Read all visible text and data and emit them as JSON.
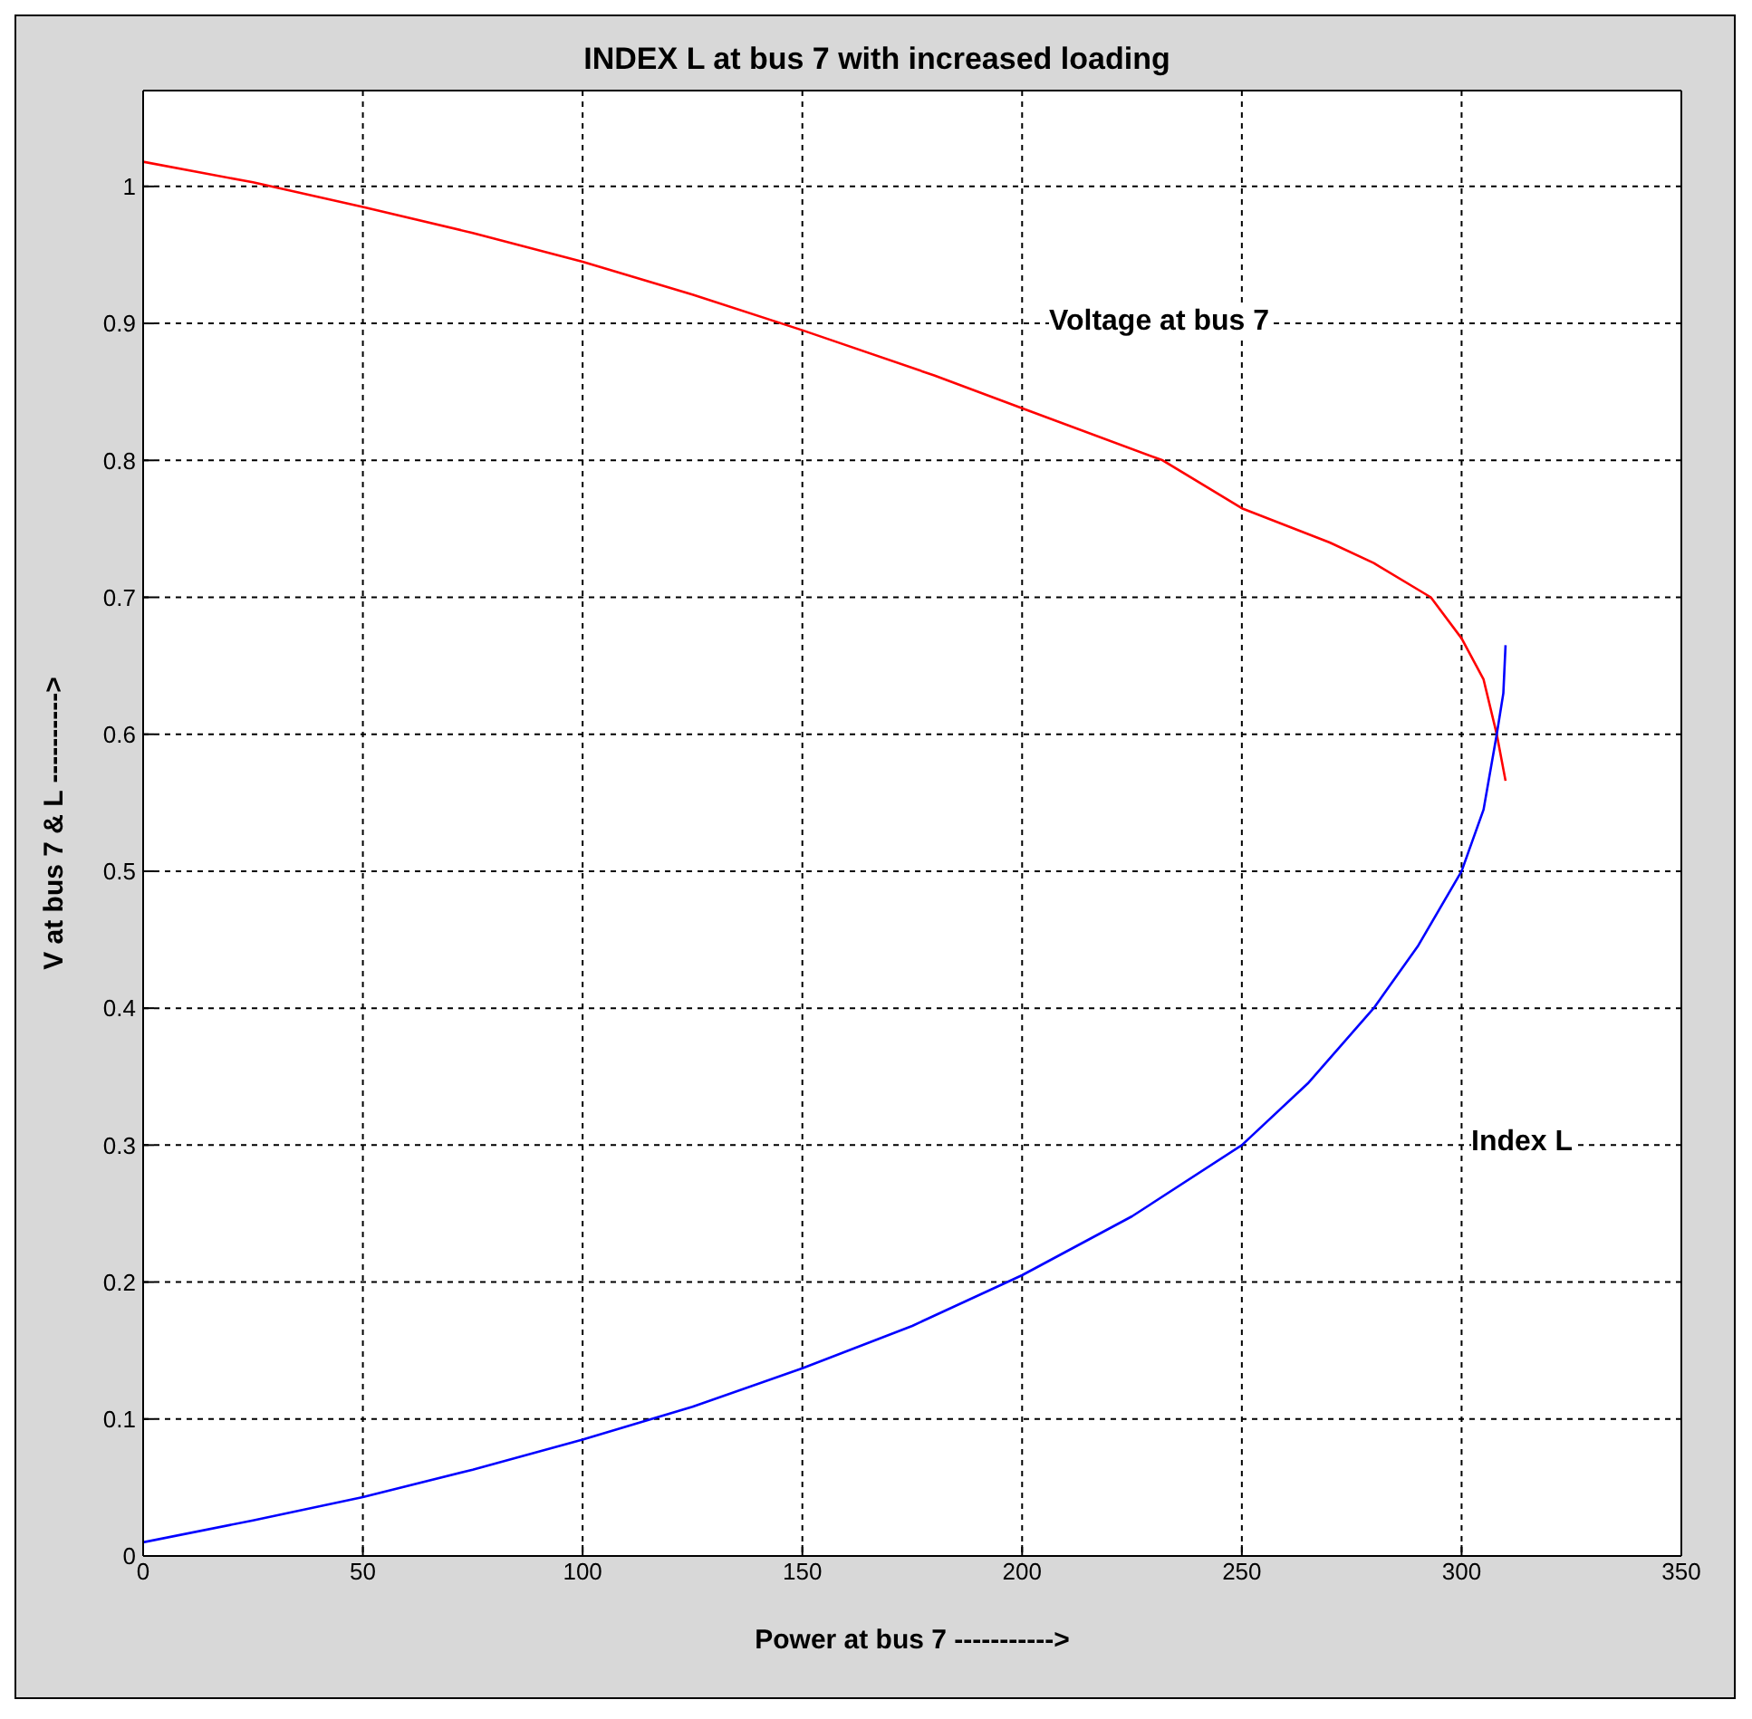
{
  "chart_data": {
    "type": "line",
    "title": "INDEX L at bus 7 with increased loading",
    "xlabel": "Power at bus 7 ----------->",
    "ylabel": "V at bus 7 & L ---------->",
    "series": [
      {
        "color": "#ff0000",
        "x": [
          0,
          25,
          50,
          75,
          100,
          125,
          150,
          180,
          200,
          232,
          250,
          270,
          280,
          293,
          300,
          305,
          308,
          310
        ],
        "values": [
          1.018,
          1.003,
          0.985,
          0.966,
          0.945,
          0.921,
          0.895,
          0.862,
          0.838,
          0.8,
          0.765,
          0.74,
          0.725,
          0.7,
          0.67,
          0.64,
          0.6,
          0.566
        ]
      },
      {
        "color": "#0000ff",
        "x": [
          0,
          25,
          50,
          75,
          100,
          125,
          150,
          175,
          200,
          225,
          250,
          265,
          280,
          290,
          300,
          305,
          308,
          309.5,
          310
        ],
        "values": [
          0.01,
          0.026,
          0.043,
          0.063,
          0.085,
          0.109,
          0.137,
          0.168,
          0.205,
          0.248,
          0.3,
          0.345,
          0.4,
          0.445,
          0.5,
          0.545,
          0.6,
          0.63,
          0.665
        ]
      }
    ],
    "annotations": [
      "Voltage at bus 7",
      "Index L"
    ],
    "xlim": [
      0,
      350
    ],
    "xticks": [
      0,
      50,
      100,
      150,
      200,
      250,
      300,
      350
    ],
    "ylim": [
      0,
      1.07
    ],
    "yticks": [
      0,
      0.1,
      0.2,
      0.3,
      0.4,
      0.5,
      0.6,
      0.7,
      0.8,
      0.9,
      1
    ],
    "grid": true,
    "legend": false,
    "marker": "none",
    "line_style": "solid"
  }
}
